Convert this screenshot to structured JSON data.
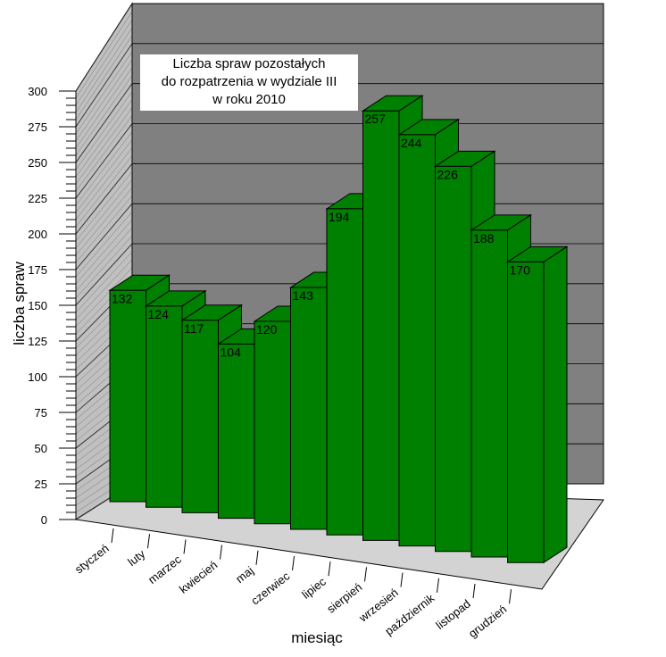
{
  "chart_data": {
    "type": "bar",
    "title_lines": [
      "Liczba spraw pozostałych",
      "do rozpatrzenia w  wydziale III",
      "w roku 2010"
    ],
    "xlabel": "miesiąc",
    "ylabel": "liczba spraw",
    "categories": [
      "styczeń",
      "luty",
      "marzec",
      "kwiecień",
      "maj",
      "czerwiec",
      "lipiec",
      "sierpień",
      "wrzesień",
      "październik",
      "listopad",
      "grudzień"
    ],
    "values": [
      132,
      124,
      117,
      104,
      120,
      143,
      194,
      257,
      244,
      226,
      188,
      170
    ],
    "ylim": [
      0,
      300
    ],
    "yticks": [
      0,
      25,
      50,
      75,
      100,
      125,
      150,
      175,
      200,
      225,
      250,
      275,
      300
    ],
    "bar_color": "#008000",
    "back_wall_color": "#808080",
    "side_wall_color": "#c0c0c0",
    "floor_color": "#d3d3d3",
    "grid": true,
    "three_d": true
  }
}
